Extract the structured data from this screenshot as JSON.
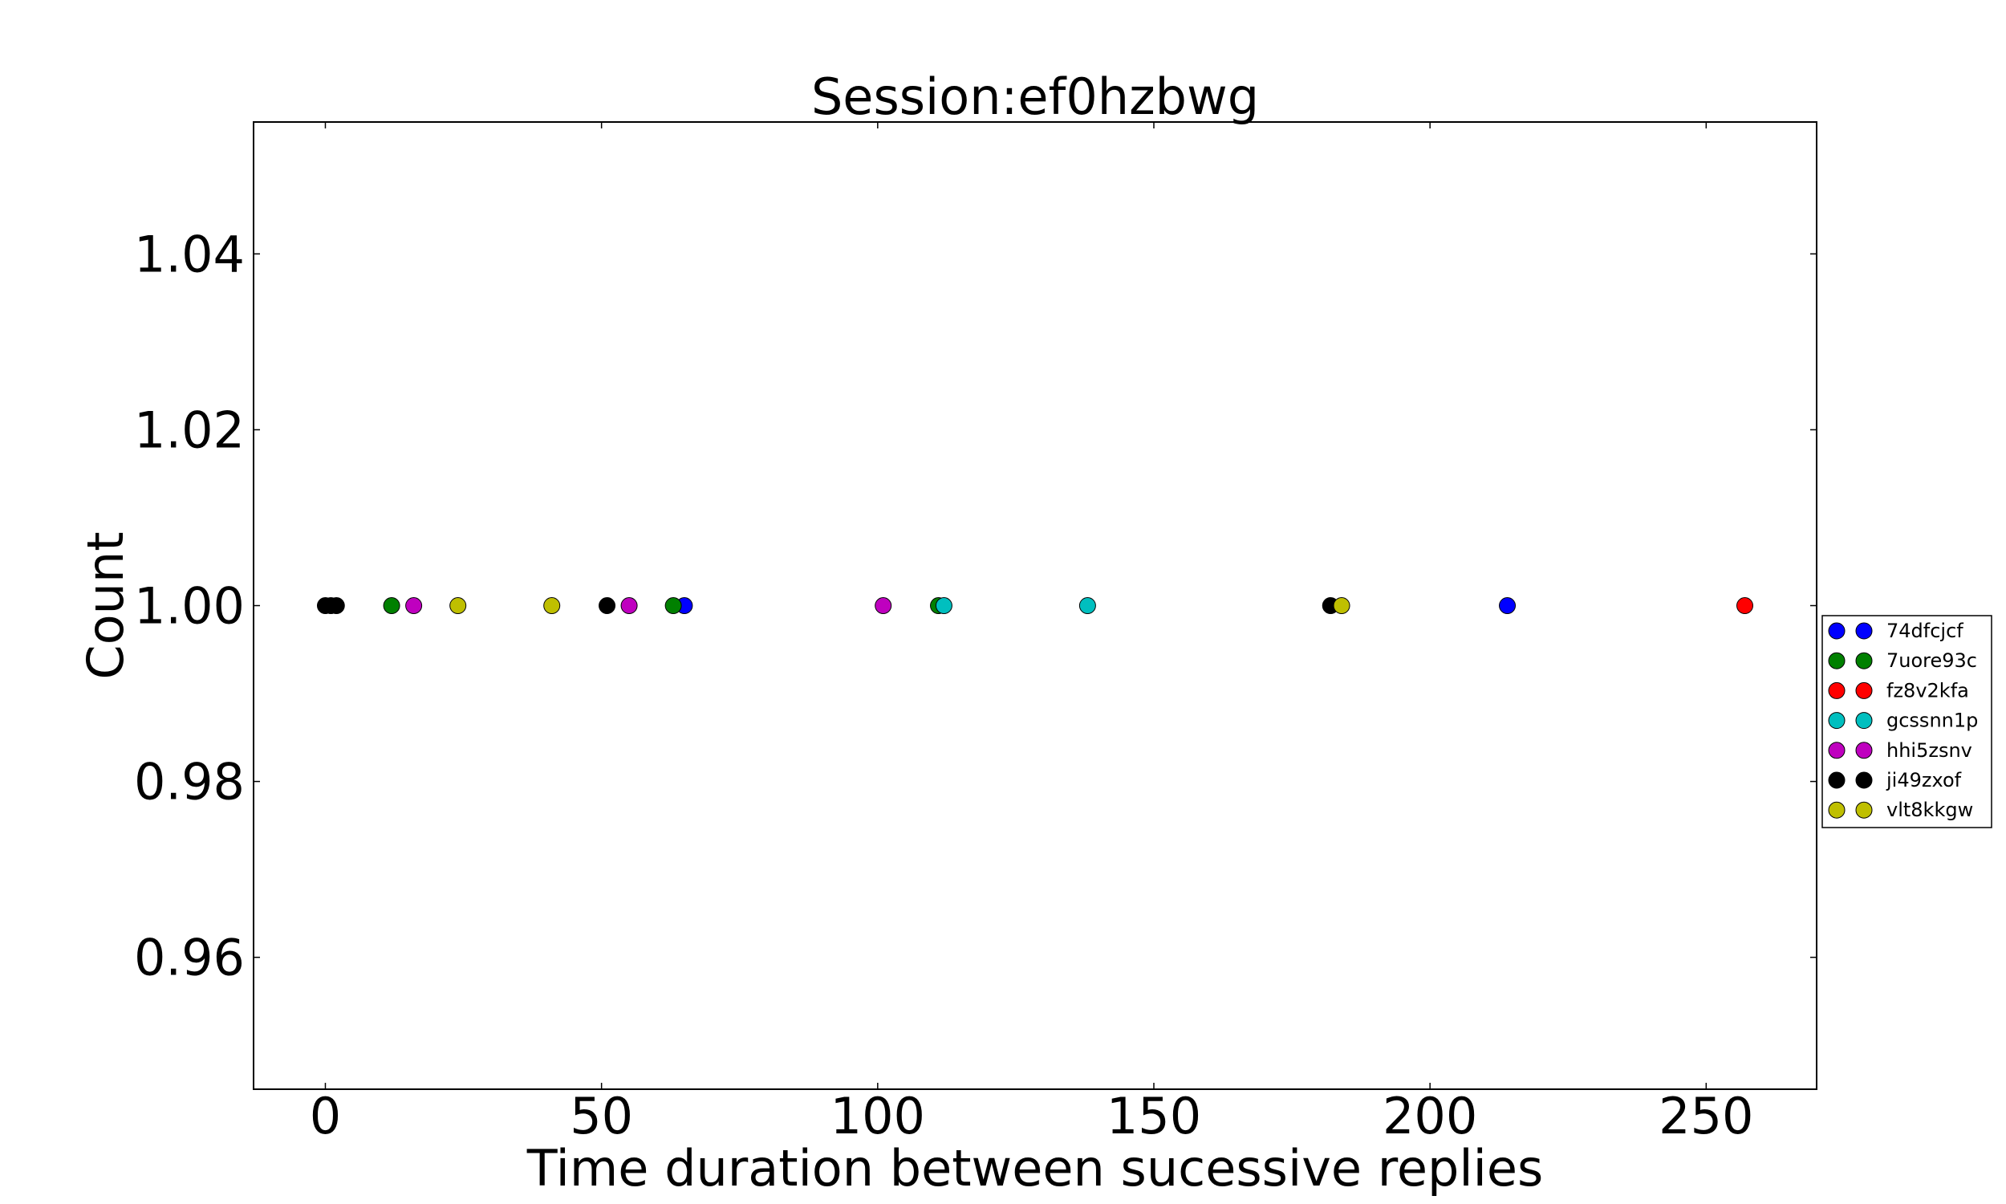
{
  "chart_data": {
    "type": "scatter",
    "title": "Session:ef0hzbwg",
    "xlabel": "Time duration between sucessive replies",
    "ylabel": "Count",
    "xlim": [
      -13,
      270
    ],
    "ylim": [
      0.945,
      1.055
    ],
    "x_ticks": [
      0,
      50,
      100,
      150,
      200,
      250
    ],
    "x_tick_labels": [
      "0",
      "50",
      "100",
      "150",
      "200",
      "250"
    ],
    "y_ticks": [
      0.96,
      0.98,
      1.0,
      1.02,
      1.04
    ],
    "y_tick_labels": [
      "0.96",
      "0.98",
      "1.00",
      "1.02",
      "1.04"
    ],
    "grid": false,
    "legend_position": "right, outside plot",
    "series": [
      {
        "name": "74dfcjcf",
        "color": "#0000ff",
        "x": [
          65,
          214
        ],
        "y": [
          1.0,
          1.0
        ]
      },
      {
        "name": "7uore93c",
        "color": "#008000",
        "x": [
          12,
          63,
          111
        ],
        "y": [
          1.0,
          1.0,
          1.0
        ]
      },
      {
        "name": "fz8v2kfa",
        "color": "#ff0000",
        "x": [
          257
        ],
        "y": [
          1.0
        ]
      },
      {
        "name": "gcssnn1p",
        "color": "#00bfbf",
        "x": [
          112,
          138
        ],
        "y": [
          1.0,
          1.0
        ]
      },
      {
        "name": "hhi5zsnv",
        "color": "#bf00bf",
        "x": [
          16,
          55,
          101
        ],
        "y": [
          1.0,
          1.0,
          1.0
        ]
      },
      {
        "name": "ji49zxof",
        "color": "#000000",
        "x": [
          0,
          1,
          2,
          51,
          182
        ],
        "y": [
          1.0,
          1.0,
          1.0,
          1.0,
          1.0
        ]
      },
      {
        "name": "vlt8kkgw",
        "color": "#bfbf00",
        "x": [
          24,
          41,
          184
        ],
        "y": [
          1.0,
          1.0,
          1.0
        ]
      }
    ]
  }
}
